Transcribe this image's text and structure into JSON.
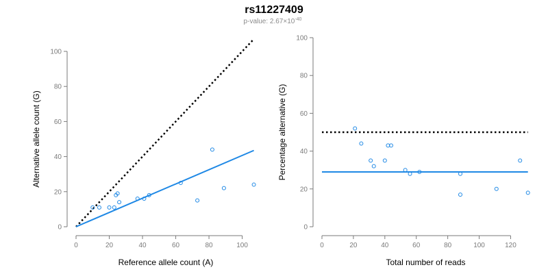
{
  "figure": {
    "title": "rs11227409",
    "subtitle_prefix": "p-value: 2.67×10",
    "subtitle_exponent": "-40"
  },
  "colors": {
    "points": "#1e88e5",
    "fit_line": "#1e88e5",
    "reference_line": "#000000",
    "axis": "#7a7a7a"
  },
  "chart_data": [
    {
      "type": "scatter",
      "xlabel": "Reference allele count (A)",
      "ylabel": "Alternative allele count (G)",
      "xlim": [
        0,
        108
      ],
      "ylim": [
        0,
        100
      ],
      "xticks": [
        0,
        20,
        40,
        60,
        80,
        100
      ],
      "yticks": [
        0,
        20,
        40,
        60,
        80,
        100
      ],
      "x": [
        10,
        14,
        20,
        23,
        24,
        25,
        26,
        37,
        41,
        44,
        63,
        73,
        82,
        89,
        107
      ],
      "y": [
        11,
        11,
        11,
        11,
        18,
        19,
        14,
        16,
        16,
        18,
        25,
        15,
        44,
        22,
        24
      ],
      "fit_line": {
        "x": [
          0,
          107
        ],
        "y": [
          0,
          43.5
        ],
        "style": "solid"
      },
      "reference_line": {
        "x": [
          0,
          107
        ],
        "y": [
          0,
          107
        ],
        "style": "dotted"
      }
    },
    {
      "type": "scatter",
      "xlabel": "Total number of reads",
      "ylabel": "Percentage alternative (G)",
      "xlim": [
        0,
        132
      ],
      "ylim": [
        0,
        100
      ],
      "xticks": [
        0,
        20,
        40,
        60,
        80,
        100,
        120
      ],
      "yticks": [
        0,
        20,
        40,
        60,
        80,
        100
      ],
      "x": [
        21,
        25,
        31,
        33,
        40,
        42,
        44,
        53,
        56,
        62,
        88,
        88,
        111,
        126,
        131
      ],
      "y": [
        52,
        44,
        35,
        32,
        35,
        43,
        43,
        30,
        28,
        29,
        28,
        17,
        20,
        35,
        18
      ],
      "fit_line": {
        "x": [
          0,
          131
        ],
        "y": [
          29,
          29
        ],
        "style": "solid"
      },
      "reference_line": {
        "x": [
          0,
          131
        ],
        "y": [
          50,
          50
        ],
        "style": "dotted"
      }
    }
  ]
}
